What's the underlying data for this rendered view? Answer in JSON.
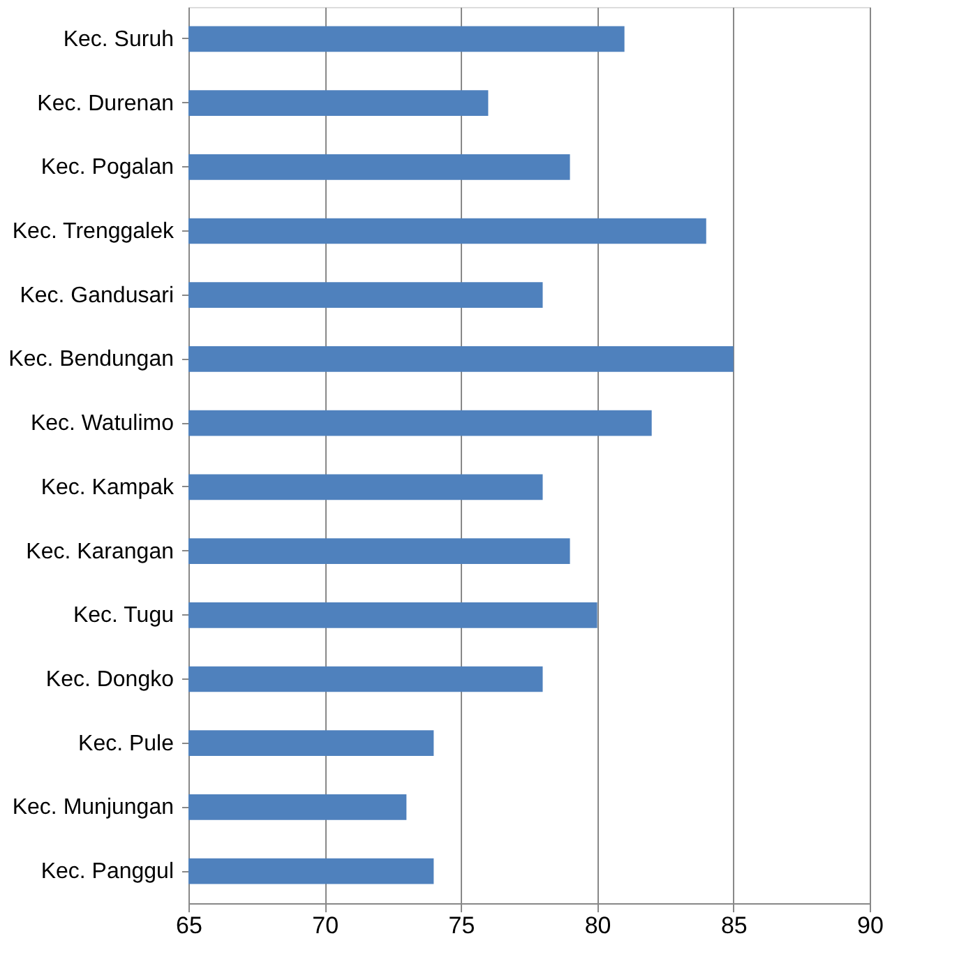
{
  "chart_data": {
    "type": "bar",
    "orientation": "horizontal",
    "categories": [
      "Kec. Suruh",
      "Kec. Durenan",
      "Kec. Pogalan",
      "Kec. Trenggalek",
      "Kec. Gandusari",
      "Kec. Bendungan",
      "Kec. Watulimo",
      "Kec. Kampak",
      "Kec. Karangan",
      "Kec. Tugu",
      "Kec. Dongko",
      "Kec. Pule",
      "Kec. Munjungan",
      "Kec. Panggul"
    ],
    "values": [
      81,
      76,
      79,
      84,
      78,
      85,
      82,
      78,
      79,
      80,
      78,
      74,
      73,
      74
    ],
    "color": "#4f81bd",
    "xlim": [
      65,
      90
    ],
    "xticks": [
      65,
      70,
      75,
      80,
      85,
      90
    ],
    "grid": "x"
  }
}
